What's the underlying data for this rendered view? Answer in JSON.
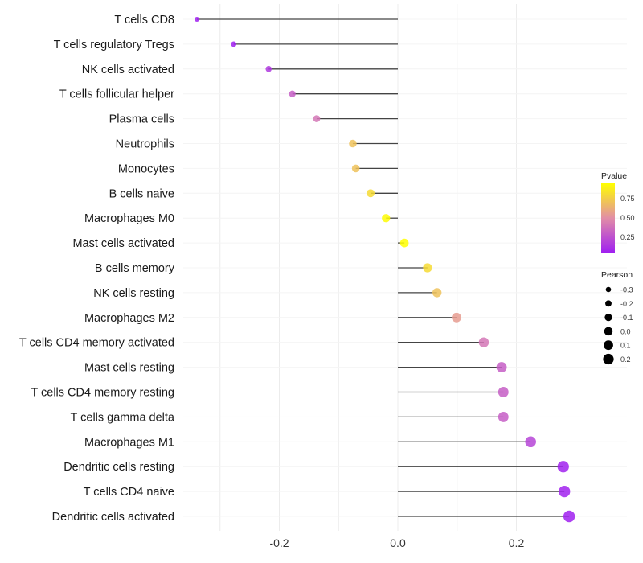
{
  "chart_data": {
    "type": "lollipop",
    "title": "",
    "xlabel": "",
    "ylabel": "",
    "xlim": [
      -0.34,
      0.3
    ],
    "xticks": [
      -0.2,
      0.0,
      0.2
    ],
    "xtick_labels": [
      "-0.2",
      "0.0",
      "0.2"
    ],
    "grid": true,
    "categories": [
      "T cells CD8",
      "T cells regulatory  Tregs",
      "NK cells activated",
      "T cells follicular helper",
      "Plasma cells",
      "Neutrophils",
      "Monocytes",
      "B cells naive",
      "Macrophages M0",
      "Mast cells activated",
      "B cells memory",
      "NK cells resting",
      "Macrophages M2",
      "T cells CD4 memory activated",
      "Mast cells resting",
      "T cells CD4 memory resting",
      "T cells gamma delta",
      "Macrophages M1",
      "Dendritic cells resting",
      "T cells CD4 naive",
      "Dendritic cells activated"
    ],
    "pearson": [
      -0.339,
      -0.277,
      -0.218,
      -0.178,
      -0.137,
      -0.076,
      -0.071,
      -0.046,
      -0.02,
      0.011,
      0.05,
      0.066,
      0.099,
      0.145,
      0.175,
      0.178,
      0.178,
      0.224,
      0.279,
      0.281,
      0.289
    ],
    "pvalue": [
      0.02,
      0.05,
      0.15,
      0.3,
      0.4,
      0.7,
      0.7,
      0.8,
      0.93,
      0.96,
      0.8,
      0.7,
      0.55,
      0.4,
      0.3,
      0.3,
      0.3,
      0.2,
      0.06,
      0.06,
      0.05
    ],
    "color_legend": {
      "title": "Pvalue",
      "ticks": [
        0.25,
        0.5,
        0.75
      ],
      "tick_labels": [
        "0.25",
        "0.50",
        "0.75"
      ],
      "range": [
        0.05,
        0.94
      ],
      "low_color": "#A020F0",
      "mid_color": "#E28EA6",
      "high_color": "#FFFF00"
    },
    "size_legend": {
      "title": "Pearson",
      "values": [
        -0.3,
        -0.2,
        -0.1,
        0.0,
        0.1,
        0.2
      ],
      "labels": [
        "-0.3",
        "-0.2",
        "-0.1",
        "0.0",
        "0.1",
        "0.2"
      ]
    },
    "legend_position": "right"
  }
}
